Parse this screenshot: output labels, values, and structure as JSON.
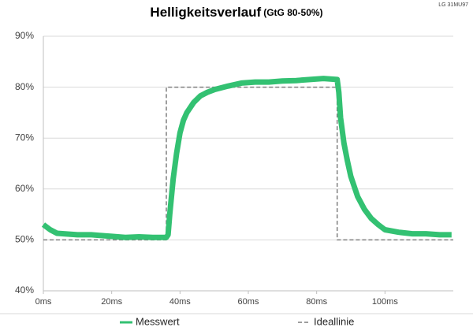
{
  "chart_data": {
    "type": "line",
    "title": "Helligkeitsverlauf",
    "subtitle": "(GtG 80-50%)",
    "annotation": "LG 31MU97",
    "xlim": [
      0,
      120
    ],
    "ylim": [
      40,
      90
    ],
    "xticks": [
      {
        "value": 0,
        "label": "0ms"
      },
      {
        "value": 20,
        "label": "20ms"
      },
      {
        "value": 40,
        "label": "40ms"
      },
      {
        "value": 60,
        "label": "60ms"
      },
      {
        "value": 80,
        "label": "80ms"
      },
      {
        "value": 100,
        "label": "100ms"
      }
    ],
    "yticks": [
      {
        "value": 40,
        "label": "40%"
      },
      {
        "value": 50,
        "label": "50%"
      },
      {
        "value": 60,
        "label": "60%"
      },
      {
        "value": 70,
        "label": "70%"
      },
      {
        "value": 80,
        "label": "80%"
      },
      {
        "value": 90,
        "label": "90%"
      }
    ],
    "grid": true,
    "legend": "bottom",
    "series": [
      {
        "name": "Messwert",
        "color": "#33c172",
        "dash": false,
        "x": [
          0,
          2,
          4,
          6,
          10,
          14,
          18,
          20,
          24,
          28,
          32,
          36,
          36.5,
          37,
          38,
          39,
          40,
          41,
          42,
          44,
          46,
          48,
          50,
          54,
          58,
          62,
          66,
          70,
          74,
          78,
          82,
          86,
          86.5,
          87,
          88,
          89,
          90,
          92,
          94,
          96,
          98,
          100,
          104,
          108,
          112,
          116,
          119.5
        ],
        "values": [
          53,
          52,
          51.3,
          51.2,
          51,
          51,
          50.8,
          50.7,
          50.5,
          50.6,
          50.5,
          50.5,
          51,
          55,
          62,
          67,
          71,
          73.5,
          75,
          77,
          78.3,
          79,
          79.5,
          80.2,
          80.8,
          81,
          81,
          81.2,
          81.3,
          81.5,
          81.7,
          81.5,
          79,
          74,
          69,
          65.5,
          62.5,
          58.5,
          56,
          54.2,
          53,
          52,
          51.5,
          51.2,
          51.2,
          51,
          51
        ]
      },
      {
        "name": "Ideallinie",
        "color": "#7f7f7f",
        "dash": true,
        "x": [
          0,
          36,
          36,
          86,
          86,
          120
        ],
        "values": [
          50,
          50,
          80,
          80,
          50,
          50
        ]
      }
    ]
  }
}
